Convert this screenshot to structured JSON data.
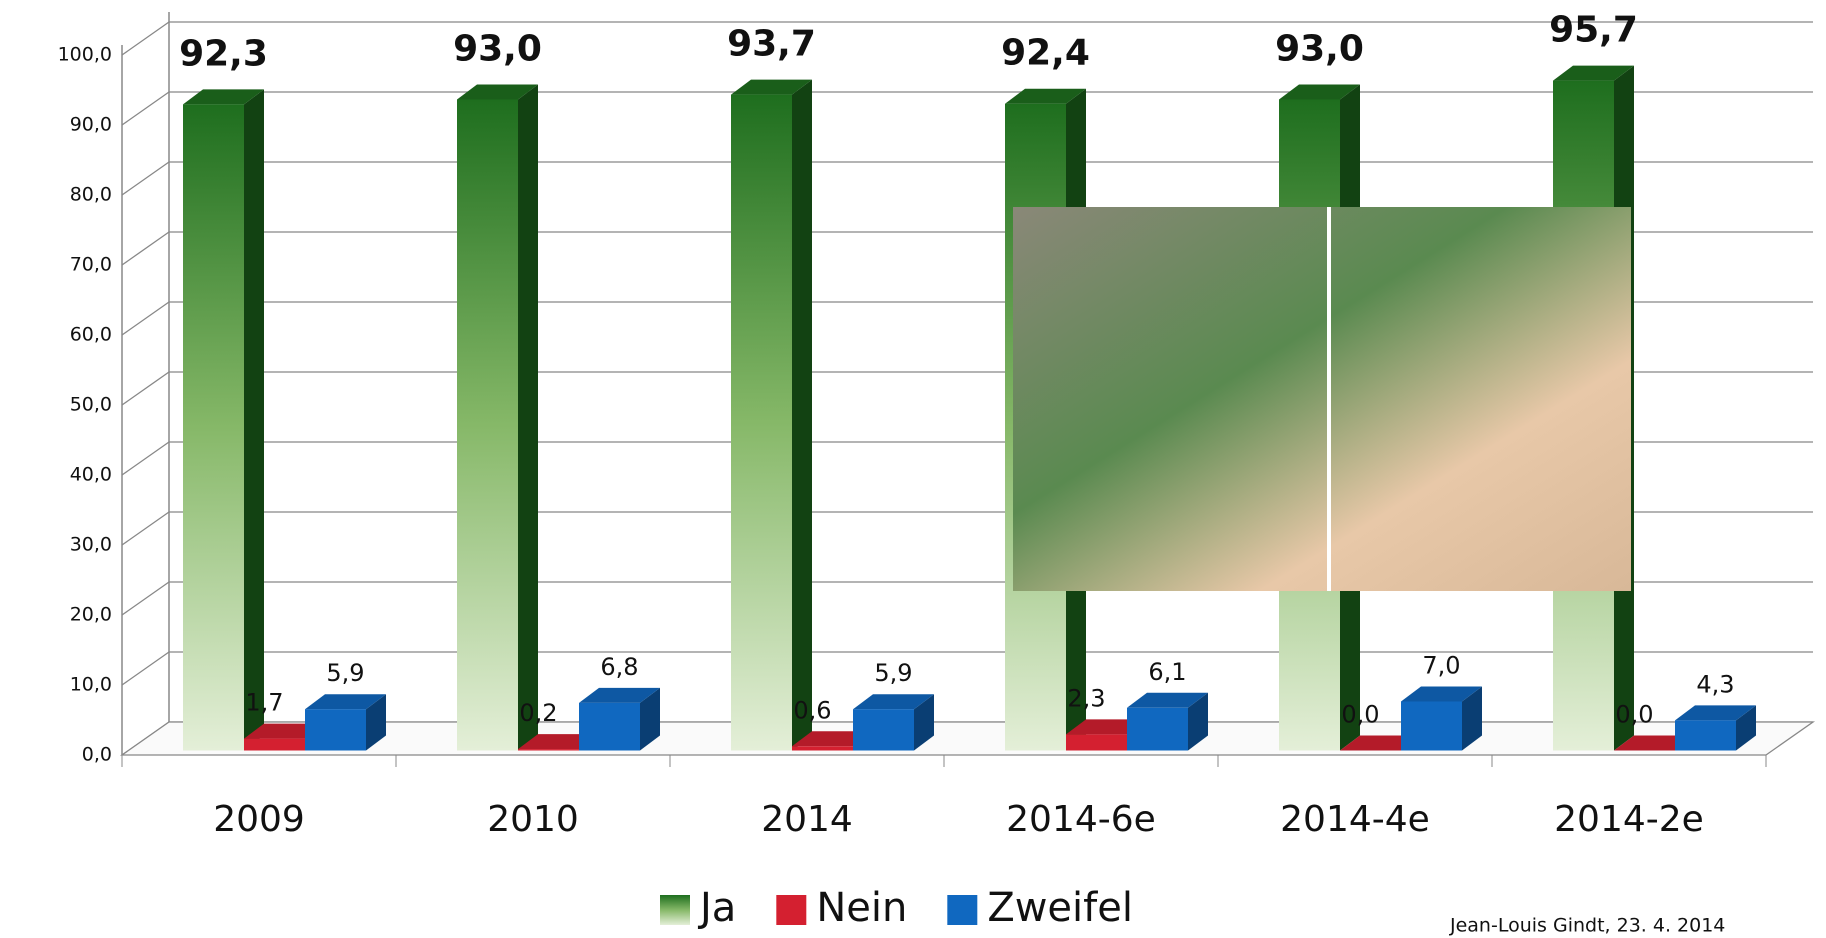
{
  "chart_data": {
    "type": "bar3d",
    "categories": [
      "2009",
      "2010",
      "2014",
      "2014-6e",
      "2014-4e",
      "2014-2e"
    ],
    "series": [
      {
        "name": "Ja",
        "color": "#1e6e1e",
        "values": [
          92.3,
          93.0,
          93.7,
          92.4,
          93.0,
          95.7
        ],
        "value_labels": [
          "92,3",
          "93,0",
          "93,7",
          "92,4",
          "93,0",
          "95,7"
        ]
      },
      {
        "name": "Nein",
        "color": "#d42030",
        "values": [
          1.7,
          0.2,
          0.6,
          2.3,
          0.0,
          0.0
        ],
        "value_labels": [
          "1,7",
          "0,2",
          "0,6",
          "2,3",
          "0,0",
          "0,0"
        ]
      },
      {
        "name": "Zweifel",
        "color": "#1068c0",
        "values": [
          5.9,
          6.8,
          5.9,
          6.1,
          7.0,
          4.3
        ],
        "value_labels": [
          "5,9",
          "6,8",
          "5,9",
          "6,1",
          "7,0",
          "4,3"
        ]
      }
    ],
    "ylim": [
      0,
      100
    ],
    "yticks": [
      {
        "value": 0,
        "label": "0,0"
      },
      {
        "value": 10,
        "label": "10,0"
      },
      {
        "value": 20,
        "label": "20,0"
      },
      {
        "value": 30,
        "label": "30,0"
      },
      {
        "value": 40,
        "label": "40,0"
      },
      {
        "value": 50,
        "label": "50,0"
      },
      {
        "value": 60,
        "label": "60,0"
      },
      {
        "value": 70,
        "label": "70,0"
      },
      {
        "value": 80,
        "label": "80,0"
      },
      {
        "value": 90,
        "label": "90,0"
      },
      {
        "value": {
          "value": 100,
          "label": "100,0"
        }
      }
    ],
    "grid": true,
    "legend": "bottom",
    "footnote": "Jean-Louis Gindt, 23. 4. 2014"
  }
}
